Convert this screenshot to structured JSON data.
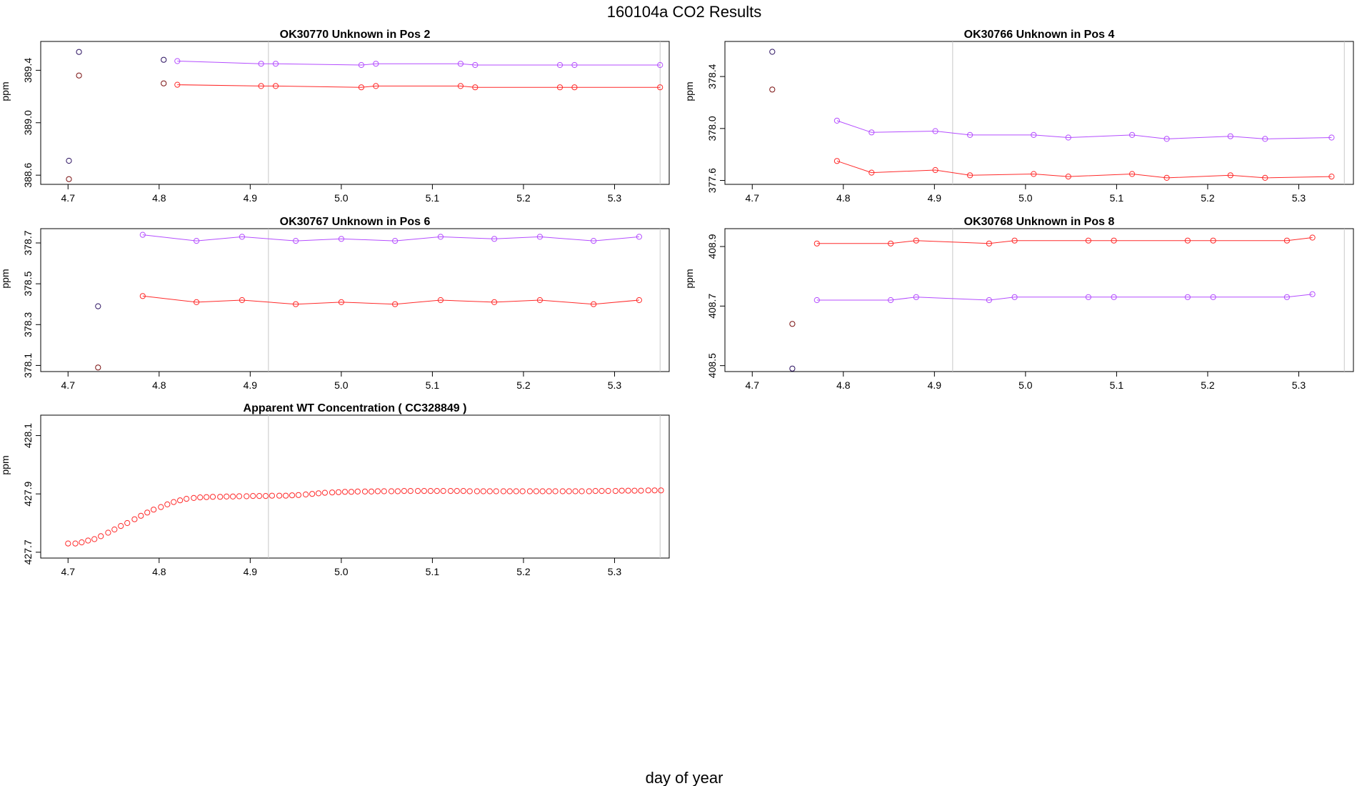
{
  "page_title": "160104a  CO2 Results",
  "x_axis_label": "day of year",
  "colors": {
    "red": "#ff2a2a",
    "purple": "#b44dff",
    "dark": "#2a1060",
    "ref_line": "#c8c8c8"
  },
  "chart_data": [
    {
      "type": "line",
      "title": "OK30770    Unknown in Pos 2",
      "ylabel": "ppm",
      "xlim": [
        4.67,
        5.36
      ],
      "ylim": [
        388.53,
        389.62
      ],
      "xticks": [
        "4.7",
        "4.8",
        "4.9",
        "5.0",
        "5.1",
        "5.2",
        "5.3"
      ],
      "yticks": [
        "388.6",
        "389.0",
        "389.4"
      ],
      "ref_lines": [
        4.92,
        5.35
      ],
      "series": [
        {
          "name": "purple",
          "color": "#b44dff",
          "lines": true,
          "x": [
            4.82,
            4.912,
            4.928,
            5.022,
            5.038,
            5.131,
            5.147,
            5.24,
            5.256,
            5.35
          ],
          "y": [
            389.47,
            389.45,
            389.45,
            389.44,
            389.45,
            389.45,
            389.44,
            389.44,
            389.44,
            389.44
          ]
        },
        {
          "name": "red",
          "color": "#ff2a2a",
          "lines": true,
          "x": [
            4.82,
            4.912,
            4.928,
            5.022,
            5.038,
            5.131,
            5.147,
            5.24,
            5.256,
            5.35
          ],
          "y": [
            389.29,
            389.28,
            389.28,
            389.27,
            389.28,
            389.28,
            389.27,
            389.27,
            389.27,
            389.27
          ]
        },
        {
          "name": "initial-dark",
          "color": "#2a1060",
          "lines": false,
          "x": [
            4.701,
            4.712,
            4.805
          ],
          "y": [
            388.71,
            389.54,
            389.48
          ]
        },
        {
          "name": "initial-brown",
          "color": "#7a1010",
          "lines": false,
          "x": [
            4.701,
            4.712,
            4.805
          ],
          "y": [
            388.57,
            389.36,
            389.3
          ]
        }
      ]
    },
    {
      "type": "line",
      "title": "OK30766    Unknown in Pos 4",
      "ylabel": "ppm",
      "xlim": [
        4.67,
        5.36
      ],
      "ylim": [
        377.57,
        378.67
      ],
      "xticks": [
        "4.7",
        "4.8",
        "4.9",
        "5.0",
        "5.1",
        "5.2",
        "5.3"
      ],
      "yticks": [
        "377.6",
        "378.0",
        "378.4"
      ],
      "ref_lines": [
        4.92,
        5.35
      ],
      "series": [
        {
          "name": "purple",
          "color": "#b44dff",
          "lines": true,
          "x": [
            4.793,
            4.831,
            4.901,
            4.939,
            5.009,
            5.047,
            5.117,
            5.155,
            5.225,
            5.263,
            5.336
          ],
          "y": [
            378.06,
            377.97,
            377.98,
            377.95,
            377.95,
            377.93,
            377.95,
            377.92,
            377.94,
            377.92,
            377.93
          ]
        },
        {
          "name": "red",
          "color": "#ff2a2a",
          "lines": true,
          "x": [
            4.793,
            4.831,
            4.901,
            4.939,
            5.009,
            5.047,
            5.117,
            5.155,
            5.225,
            5.263,
            5.336
          ],
          "y": [
            377.75,
            377.66,
            377.68,
            377.64,
            377.65,
            377.63,
            377.65,
            377.62,
            377.64,
            377.62,
            377.63
          ]
        },
        {
          "name": "initial-dark",
          "color": "#2a1060",
          "lines": false,
          "x": [
            4.722
          ],
          "y": [
            378.59
          ]
        },
        {
          "name": "initial-brown",
          "color": "#7a1010",
          "lines": false,
          "x": [
            4.722
          ],
          "y": [
            378.3
          ]
        }
      ]
    },
    {
      "type": "line",
      "title": "OK30767    Unknown in Pos 6",
      "ylabel": "ppm",
      "xlim": [
        4.67,
        5.36
      ],
      "ylim": [
        378.07,
        378.77
      ],
      "xticks": [
        "4.7",
        "4.8",
        "4.9",
        "5.0",
        "5.1",
        "5.2",
        "5.3"
      ],
      "yticks": [
        "378.1",
        "378.3",
        "378.5",
        "378.7"
      ],
      "ref_lines": [
        4.92,
        5.35
      ],
      "series": [
        {
          "name": "purple",
          "color": "#b44dff",
          "lines": true,
          "x": [
            4.782,
            4.841,
            4.891,
            4.95,
            5.0,
            5.059,
            5.109,
            5.168,
            5.218,
            5.277,
            5.327
          ],
          "y": [
            378.74,
            378.71,
            378.73,
            378.71,
            378.72,
            378.71,
            378.73,
            378.72,
            378.73,
            378.71,
            378.73
          ]
        },
        {
          "name": "red",
          "color": "#ff2a2a",
          "lines": true,
          "x": [
            4.782,
            4.841,
            4.891,
            4.95,
            5.0,
            5.059,
            5.109,
            5.168,
            5.218,
            5.277,
            5.327
          ],
          "y": [
            378.44,
            378.41,
            378.42,
            378.4,
            378.41,
            378.4,
            378.42,
            378.41,
            378.42,
            378.4,
            378.42
          ]
        },
        {
          "name": "initial-dark",
          "color": "#2a1060",
          "lines": false,
          "x": [
            4.733
          ],
          "y": [
            378.39
          ]
        },
        {
          "name": "initial-brown",
          "color": "#7a1010",
          "lines": false,
          "x": [
            4.733
          ],
          "y": [
            378.09
          ]
        }
      ]
    },
    {
      "type": "line",
      "title": "OK30768    Unknown in Pos 8",
      "ylabel": "ppm",
      "xlim": [
        4.67,
        5.36
      ],
      "ylim": [
        408.48,
        408.96
      ],
      "xticks": [
        "4.7",
        "4.8",
        "4.9",
        "5.0",
        "5.1",
        "5.2",
        "5.3"
      ],
      "yticks": [
        "408.5",
        "408.7",
        "408.9"
      ],
      "ref_lines": [
        4.92,
        5.35
      ],
      "series": [
        {
          "name": "red",
          "color": "#ff2a2a",
          "lines": true,
          "x": [
            4.771,
            4.852,
            4.88,
            4.96,
            4.988,
            5.069,
            5.097,
            5.178,
            5.206,
            5.287,
            5.315
          ],
          "y": [
            408.91,
            408.91,
            408.92,
            408.91,
            408.92,
            408.92,
            408.92,
            408.92,
            408.92,
            408.92,
            408.93
          ]
        },
        {
          "name": "purple",
          "color": "#b44dff",
          "lines": true,
          "x": [
            4.771,
            4.852,
            4.88,
            4.96,
            4.988,
            5.069,
            5.097,
            5.178,
            5.206,
            5.287,
            5.315
          ],
          "y": [
            408.72,
            408.72,
            408.73,
            408.72,
            408.73,
            408.73,
            408.73,
            408.73,
            408.73,
            408.73,
            408.74
          ]
        },
        {
          "name": "initial-dark",
          "color": "#2a1060",
          "lines": false,
          "x": [
            4.744
          ],
          "y": [
            408.49
          ]
        },
        {
          "name": "initial-brown",
          "color": "#7a1010",
          "lines": false,
          "x": [
            4.744
          ],
          "y": [
            408.64
          ]
        }
      ]
    },
    {
      "type": "scatter",
      "title": "Apparent WT Concentration ( CC328849 )",
      "ylabel": "ppm",
      "xlim": [
        4.67,
        5.36
      ],
      "ylim": [
        427.68,
        428.17
      ],
      "xticks": [
        "4.7",
        "4.8",
        "4.9",
        "5.0",
        "5.1",
        "5.2",
        "5.3"
      ],
      "yticks": [
        "427.7",
        "427.9",
        "428.1"
      ],
      "ref_lines": [
        4.92,
        5.35
      ],
      "series": [
        {
          "name": "wt-concentration",
          "color": "#ff2a2a",
          "lines": false,
          "x": [
            4.7,
            4.708,
            4.715,
            4.722,
            4.729,
            4.736,
            4.744,
            4.751,
            4.758,
            4.765,
            4.773,
            4.78,
            4.787,
            4.794,
            4.802,
            4.809,
            4.816,
            4.823,
            4.83,
            4.838,
            4.845,
            4.852,
            4.859,
            4.867,
            4.874,
            4.881,
            4.888,
            4.896,
            4.903,
            4.91,
            4.917,
            4.924,
            4.932,
            4.939,
            4.946,
            4.953,
            4.961,
            4.968,
            4.975,
            4.982,
            4.99,
            4.997,
            5.004,
            5.011,
            5.018,
            5.026,
            5.033,
            5.04,
            5.047,
            5.055,
            5.062,
            5.069,
            5.076,
            5.084,
            5.091,
            5.098,
            5.105,
            5.112,
            5.12,
            5.127,
            5.134,
            5.141,
            5.149,
            5.156,
            5.163,
            5.17,
            5.178,
            5.185,
            5.192,
            5.199,
            5.207,
            5.214,
            5.221,
            5.228,
            5.235,
            5.243,
            5.25,
            5.257,
            5.264,
            5.272,
            5.279,
            5.286,
            5.293,
            5.301,
            5.308,
            5.315,
            5.322,
            5.329,
            5.337,
            5.344,
            5.351
          ],
          "y": [
            427.73,
            427.73,
            427.734,
            427.74,
            427.745,
            427.755,
            427.767,
            427.778,
            427.79,
            427.8,
            427.813,
            427.825,
            427.836,
            427.846,
            427.855,
            427.864,
            427.872,
            427.878,
            427.883,
            427.886,
            427.888,
            427.889,
            427.89,
            427.89,
            427.891,
            427.891,
            427.892,
            427.892,
            427.893,
            427.893,
            427.893,
            427.894,
            427.894,
            427.894,
            427.895,
            427.896,
            427.898,
            427.9,
            427.902,
            427.904,
            427.905,
            427.906,
            427.907,
            427.907,
            427.908,
            427.908,
            427.908,
            427.909,
            427.909,
            427.909,
            427.909,
            427.91,
            427.91,
            427.91,
            427.91,
            427.91,
            427.91,
            427.91,
            427.91,
            427.91,
            427.91,
            427.909,
            427.909,
            427.909,
            427.909,
            427.909,
            427.909,
            427.909,
            427.909,
            427.909,
            427.909,
            427.909,
            427.909,
            427.909,
            427.909,
            427.909,
            427.909,
            427.909,
            427.909,
            427.909,
            427.91,
            427.91,
            427.91,
            427.91,
            427.911,
            427.911,
            427.911,
            427.911,
            427.912,
            427.912,
            427.912
          ]
        }
      ]
    }
  ]
}
